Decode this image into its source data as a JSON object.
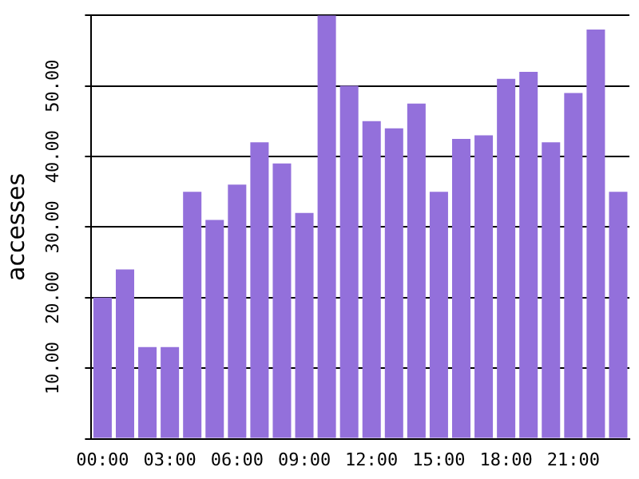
{
  "chart_data": {
    "type": "bar",
    "ylabel": "accesses",
    "categories": [
      "00:00",
      null,
      null,
      "03:00",
      null,
      null,
      "06:00",
      null,
      null,
      "09:00",
      null,
      null,
      "12:00",
      null,
      null,
      "15:00",
      null,
      null,
      "18:00",
      null,
      null,
      "21:00",
      null,
      null
    ],
    "values": [
      20,
      24,
      13,
      13,
      35,
      31,
      36,
      42,
      39,
      32,
      60,
      50,
      45,
      44,
      47.5,
      35,
      42.5,
      43,
      51,
      52,
      42,
      49,
      58,
      35
    ],
    "color": "#9370db",
    "ylim": [
      0,
      60
    ],
    "yticks": [
      {
        "value": 0,
        "label": null
      },
      {
        "value": 10,
        "label": "10.00"
      },
      {
        "value": 20,
        "label": "20.00"
      },
      {
        "value": 30,
        "label": "30.00"
      },
      {
        "value": 40,
        "label": "40.00"
      },
      {
        "value": 50,
        "label": "50.00"
      },
      {
        "value": 60,
        "label": null
      }
    ],
    "grid": "y"
  }
}
